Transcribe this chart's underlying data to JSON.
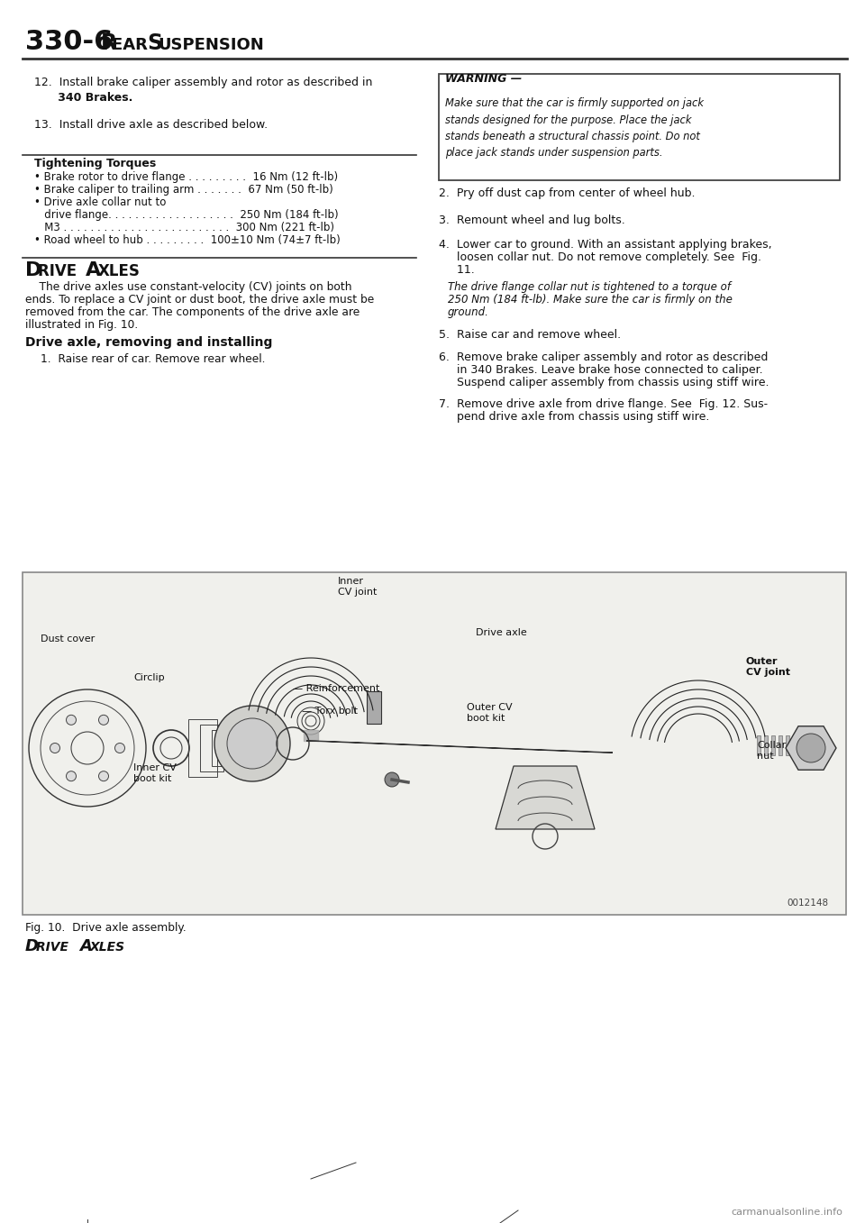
{
  "page_title": "330-6",
  "page_subtitle": "REAR SUSPENSION",
  "item12_line1": "12.  Install brake caliper assembly and rotor as described in",
  "item12_bold": "      340 Brakes.",
  "item13": "13.  Install drive axle as described below.",
  "warning_title": "WARNING —",
  "warning_body": "Make sure that the car is firmly supported on jack\nstands designed for the purpose. Place the jack\nstands beneath a structural chassis point. Do not\nplace jack stands under suspension parts.",
  "tightening_title": "Tightening Torques",
  "torque_lines": [
    "• Brake rotor to drive flange . . . . . . . . .  16 Nm (12 ft-lb)",
    "• Brake caliper to trailing arm . . . . . . .  67 Nm (50 ft-lb)",
    "• Drive axle collar nut to",
    "   drive flange. . . . . . . . . . . . . . . . . . .  250 Nm (184 ft-lb)",
    "   M3 . . . . . . . . . . . . . . . . . . . . . . . . .  300 Nm (221 ft-lb)",
    "• Road wheel to hub . . . . . . . . .  100±10 Nm (74±7 ft-lb)"
  ],
  "drive_axles_heading": "Drive Axles",
  "drive_axles_body1": "    The drive axles use constant-velocity (CV) joints on both",
  "drive_axles_body2": "ends. To replace a CV joint or dust boot, the drive axle must be",
  "drive_axles_body3": "removed from the car. The components of the drive axle are",
  "drive_axles_body4": "illustrated in Fig. 10.",
  "subhead": "Drive axle, removing and installing",
  "step1": "1.  Raise rear of car. Remove rear wheel.",
  "right_step2": "2.  Pry off dust cap from center of wheel hub.",
  "right_step3": "3.  Remount wheel and lug bolts.",
  "right_step4a": "4.  Lower car to ground. With an assistant applying brakes,",
  "right_step4b": "     loosen collar nut. Do not remove completely. See  Fig.",
  "right_step4c": "     11.",
  "italic_note1": "The drive flange collar nut is tightened to a torque of",
  "italic_note2": "250 Nm (184 ft-lb). Make sure the car is firmly on the",
  "italic_note3": "ground.",
  "right_step5": "5.  Raise car and remove wheel.",
  "right_step6a": "6.  Remove brake caliper assembly and rotor as described",
  "right_step6b": "     in 340 Brakes. Leave brake hose connected to caliper.",
  "right_step6c": "     Suspend caliper assembly from chassis using stiff wire.",
  "right_step7a": "7.  Remove drive axle from drive flange. See  Fig. 12. Sus-",
  "right_step7b": "     pend drive axle from chassis using stiff wire.",
  "fig_caption": "Fig. 10.  Drive axle assembly.",
  "fig_footer": "DRIVE AXLES",
  "watermark": "carmanualsonline.info",
  "fig_number": "0012148"
}
